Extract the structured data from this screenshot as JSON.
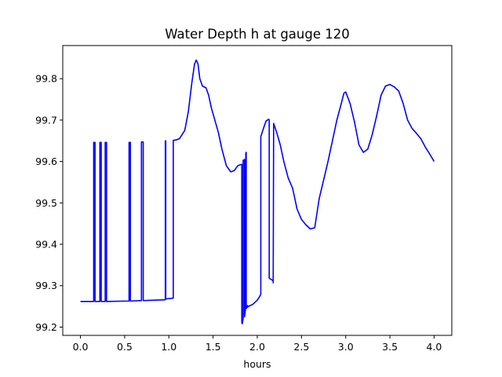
{
  "chart_data": {
    "type": "line",
    "title": "Water Depth h at gauge 120",
    "xlabel": "hours",
    "ylabel": "",
    "xlim": [
      -0.2,
      4.2
    ],
    "ylim": [
      99.18,
      99.88
    ],
    "grid": false,
    "x_ticks": [
      0.0,
      0.5,
      1.0,
      1.5,
      2.0,
      2.5,
      3.0,
      3.5,
      4.0
    ],
    "x_tick_labels": [
      "0.0",
      "0.5",
      "1.0",
      "1.5",
      "2.0",
      "2.5",
      "3.0",
      "3.5",
      "4.0"
    ],
    "y_ticks": [
      99.2,
      99.3,
      99.4,
      99.5,
      99.6,
      99.7,
      99.8
    ],
    "y_tick_labels": [
      "99.2",
      "99.3",
      "99.4",
      "99.5",
      "99.6",
      "99.7",
      "99.8"
    ],
    "series": [
      {
        "color": "#0000ff",
        "x": [
          0.0,
          0.15,
          0.15,
          0.165,
          0.165,
          0.17,
          0.17,
          0.22,
          0.22,
          0.235,
          0.235,
          0.24,
          0.24,
          0.28,
          0.28,
          0.295,
          0.295,
          0.3,
          0.3,
          0.55,
          0.55,
          0.565,
          0.565,
          0.57,
          0.57,
          0.69,
          0.69,
          0.71,
          0.71,
          0.715,
          0.715,
          0.96,
          0.96,
          0.965,
          0.965,
          1.05,
          1.05,
          1.08,
          1.12,
          1.18,
          1.22,
          1.26,
          1.29,
          1.31,
          1.33,
          1.35,
          1.38,
          1.42,
          1.45,
          1.48,
          1.52,
          1.56,
          1.6,
          1.65,
          1.7,
          1.74,
          1.78,
          1.82,
          1.825,
          1.825,
          1.83,
          1.84,
          1.84,
          1.85,
          1.855,
          1.855,
          1.86,
          1.865,
          1.87,
          1.87,
          1.875,
          1.875,
          1.885,
          1.885,
          1.89,
          1.89,
          1.9,
          1.95,
          2.0,
          2.03,
          2.04,
          2.04,
          2.07,
          2.1,
          2.13,
          2.135,
          2.135,
          2.18,
          2.18,
          2.185,
          2.185,
          2.22,
          2.26,
          2.3,
          2.35,
          2.4,
          2.45,
          2.5,
          2.55,
          2.6,
          2.65,
          2.7,
          2.8,
          2.9,
          2.95,
          2.98,
          3.0,
          3.05,
          3.1,
          3.15,
          3.2,
          3.25,
          3.3,
          3.35,
          3.4,
          3.45,
          3.5,
          3.55,
          3.6,
          3.65,
          3.7,
          3.75,
          3.8,
          3.85,
          3.9,
          3.95,
          4.0
        ],
        "y": [
          99.262,
          99.262,
          99.646,
          99.646,
          99.262,
          99.262,
          99.262,
          99.262,
          99.646,
          99.646,
          99.262,
          99.262,
          99.262,
          99.262,
          99.646,
          99.646,
          99.262,
          99.262,
          99.262,
          99.263,
          99.646,
          99.646,
          99.263,
          99.263,
          99.263,
          99.264,
          99.647,
          99.647,
          99.264,
          99.264,
          99.264,
          99.266,
          99.65,
          99.65,
          99.268,
          99.27,
          99.651,
          99.652,
          99.655,
          99.675,
          99.72,
          99.79,
          99.835,
          99.845,
          99.835,
          99.8,
          99.782,
          99.778,
          99.76,
          99.73,
          99.7,
          99.67,
          99.63,
          99.59,
          99.575,
          99.578,
          99.59,
          99.593,
          99.593,
          99.212,
          99.208,
          99.22,
          99.603,
          99.603,
          99.605,
          99.225,
          99.23,
          99.24,
          99.62,
          99.62,
          99.622,
          99.245,
          99.248,
          99.25,
          99.252,
          99.248,
          99.25,
          99.255,
          99.265,
          99.275,
          99.28,
          99.66,
          99.68,
          99.698,
          99.702,
          99.7,
          99.318,
          99.312,
          99.307,
          99.69,
          99.692,
          99.67,
          99.64,
          99.6,
          99.56,
          99.535,
          99.485,
          99.46,
          99.447,
          99.437,
          99.44,
          99.51,
          99.6,
          99.7,
          99.74,
          99.765,
          99.768,
          99.74,
          99.695,
          99.64,
          99.622,
          99.63,
          99.665,
          99.71,
          99.76,
          99.782,
          99.786,
          99.78,
          99.77,
          99.74,
          99.7,
          99.68,
          99.668,
          99.655,
          99.635,
          99.618,
          99.6
        ]
      }
    ]
  }
}
